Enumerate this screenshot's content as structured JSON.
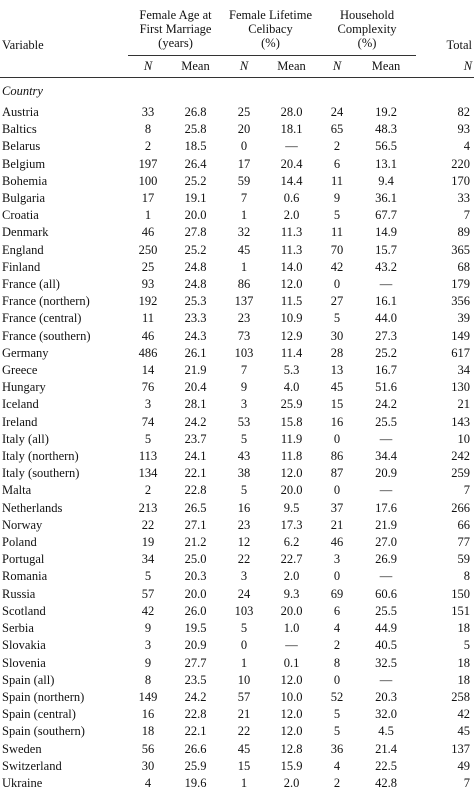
{
  "header": {
    "variable": "Variable",
    "groups": [
      {
        "line1": "Female Age at",
        "line2": "First Marriage",
        "line3": "(years)"
      },
      {
        "line1": "Female Lifetime",
        "line2": "Celibacy",
        "line3": "(%)"
      },
      {
        "line1": "Household",
        "line2": "Complexity",
        "line3": "(%)"
      }
    ],
    "total": "Total",
    "sub": {
      "n": "N",
      "mean": "Mean"
    }
  },
  "section_label": "Country",
  "rows": [
    [
      "Austria",
      "33",
      "26.8",
      "25",
      "28.0",
      "24",
      "19.2",
      "82"
    ],
    [
      "Baltics",
      "8",
      "25.8",
      "20",
      "18.1",
      "65",
      "48.3",
      "93"
    ],
    [
      "Belarus",
      "2",
      "18.5",
      "0",
      "—",
      "2",
      "56.5",
      "4"
    ],
    [
      "Belgium",
      "197",
      "26.4",
      "17",
      "20.4",
      "6",
      "13.1",
      "220"
    ],
    [
      "Bohemia",
      "100",
      "25.2",
      "59",
      "14.4",
      "11",
      "9.4",
      "170"
    ],
    [
      "Bulgaria",
      "17",
      "19.1",
      "7",
      "0.6",
      "9",
      "36.1",
      "33"
    ],
    [
      "Croatia",
      "1",
      "20.0",
      "1",
      "2.0",
      "5",
      "67.7",
      "7"
    ],
    [
      "Denmark",
      "46",
      "27.8",
      "32",
      "11.3",
      "11",
      "14.9",
      "89"
    ],
    [
      "England",
      "250",
      "25.2",
      "45",
      "11.3",
      "70",
      "15.7",
      "365"
    ],
    [
      "Finland",
      "25",
      "24.8",
      "1",
      "14.0",
      "42",
      "43.2",
      "68"
    ],
    [
      "France (all)",
      "93",
      "24.8",
      "86",
      "12.0",
      "0",
      "—",
      "179"
    ],
    [
      "France (northern)",
      "192",
      "25.3",
      "137",
      "11.5",
      "27",
      "16.1",
      "356"
    ],
    [
      "France (central)",
      "11",
      "23.3",
      "23",
      "10.9",
      "5",
      "44.0",
      "39"
    ],
    [
      "France (southern)",
      "46",
      "24.3",
      "73",
      "12.9",
      "30",
      "27.3",
      "149"
    ],
    [
      "Germany",
      "486",
      "26.1",
      "103",
      "11.4",
      "28",
      "25.2",
      "617"
    ],
    [
      "Greece",
      "14",
      "21.9",
      "7",
      "5.3",
      "13",
      "16.7",
      "34"
    ],
    [
      "Hungary",
      "76",
      "20.4",
      "9",
      "4.0",
      "45",
      "51.6",
      "130"
    ],
    [
      "Iceland",
      "3",
      "28.1",
      "3",
      "25.9",
      "15",
      "24.2",
      "21"
    ],
    [
      "Ireland",
      "74",
      "24.2",
      "53",
      "15.8",
      "16",
      "25.5",
      "143"
    ],
    [
      "Italy (all)",
      "5",
      "23.7",
      "5",
      "11.9",
      "0",
      "—",
      "10"
    ],
    [
      "Italy (northern)",
      "113",
      "24.1",
      "43",
      "11.8",
      "86",
      "34.4",
      "242"
    ],
    [
      "Italy (southern)",
      "134",
      "22.1",
      "38",
      "12.0",
      "87",
      "20.9",
      "259"
    ],
    [
      "Malta",
      "2",
      "22.8",
      "5",
      "20.0",
      "0",
      "—",
      "7"
    ],
    [
      "Netherlands",
      "213",
      "26.5",
      "16",
      "9.5",
      "37",
      "17.6",
      "266"
    ],
    [
      "Norway",
      "22",
      "27.1",
      "23",
      "17.3",
      "21",
      "21.9",
      "66"
    ],
    [
      "Poland",
      "19",
      "21.2",
      "12",
      "6.2",
      "46",
      "27.0",
      "77"
    ],
    [
      "Portugal",
      "34",
      "25.0",
      "22",
      "22.7",
      "3",
      "26.9",
      "59"
    ],
    [
      "Romania",
      "5",
      "20.3",
      "3",
      "2.0",
      "0",
      "—",
      "8"
    ],
    [
      "Russia",
      "57",
      "20.0",
      "24",
      "9.3",
      "69",
      "60.6",
      "150"
    ],
    [
      "Scotland",
      "42",
      "26.0",
      "103",
      "20.0",
      "6",
      "25.5",
      "151"
    ],
    [
      "Serbia",
      "9",
      "19.5",
      "5",
      "1.0",
      "4",
      "44.9",
      "18"
    ],
    [
      "Slovakia",
      "3",
      "20.9",
      "0",
      "—",
      "2",
      "40.5",
      "5"
    ],
    [
      "Slovenia",
      "9",
      "27.7",
      "1",
      "0.1",
      "8",
      "32.5",
      "18"
    ],
    [
      "Spain (all)",
      "8",
      "23.5",
      "10",
      "12.0",
      "0",
      "—",
      "18"
    ],
    [
      "Spain (northern)",
      "149",
      "24.2",
      "57",
      "10.0",
      "52",
      "20.3",
      "258"
    ],
    [
      "Spain (central)",
      "16",
      "22.8",
      "21",
      "12.0",
      "5",
      "32.0",
      "42"
    ],
    [
      "Spain (southern)",
      "18",
      "22.1",
      "22",
      "12.0",
      "5",
      "4.5",
      "45"
    ],
    [
      "Sweden",
      "56",
      "26.6",
      "45",
      "12.8",
      "36",
      "21.4",
      "137"
    ],
    [
      "Switzerland",
      "30",
      "25.9",
      "15",
      "15.9",
      "4",
      "22.5",
      "49"
    ],
    [
      "Ukraine",
      "4",
      "19.6",
      "1",
      "2.0",
      "2",
      "42.8",
      "7"
    ]
  ]
}
